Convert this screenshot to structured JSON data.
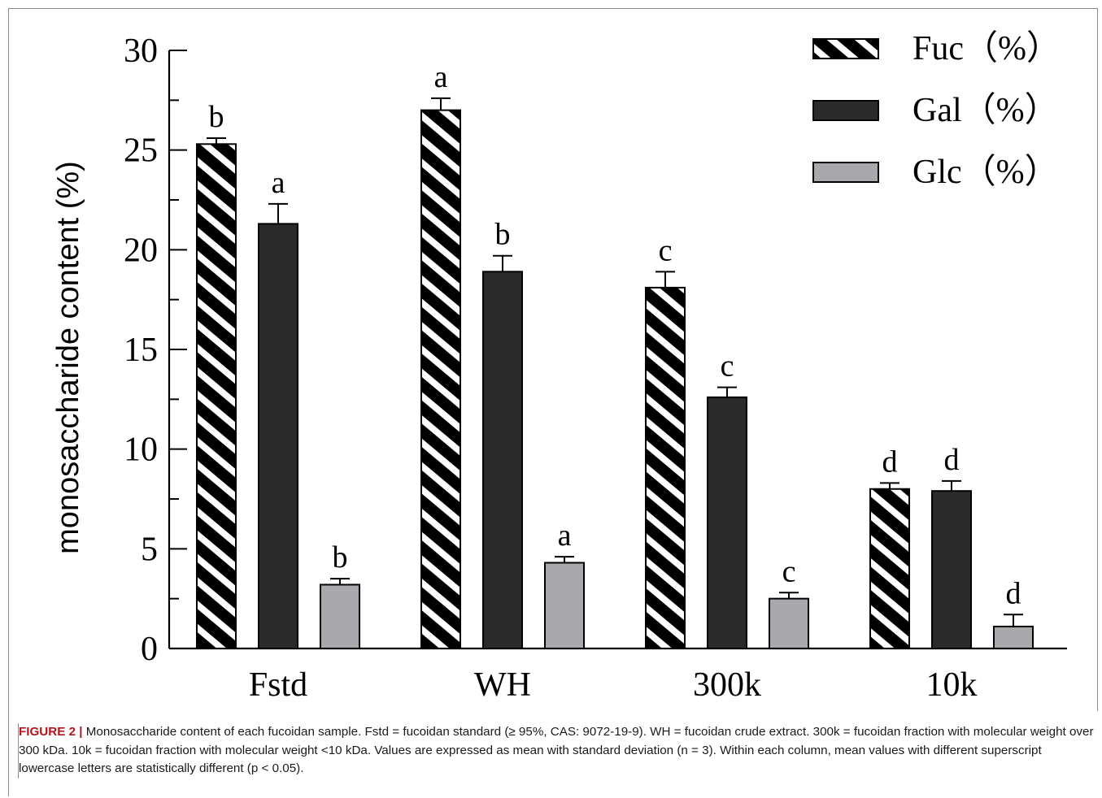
{
  "chart_data": {
    "type": "bar",
    "categories": [
      "Fstd",
      "WH",
      "300k",
      "10k"
    ],
    "ylabel": "monosaccharide content (%)",
    "ylim": [
      0,
      30
    ],
    "yticks": [
      "0",
      "5",
      "10",
      "15",
      "20",
      "25",
      "30"
    ],
    "grid": false,
    "legend_position": "top-right",
    "series": [
      {
        "name": "Fuc（%）",
        "pattern": "hatched",
        "color": "#000000",
        "values": [
          25.3,
          27.0,
          18.1,
          8.0
        ],
        "errors": [
          0.3,
          0.6,
          0.8,
          0.3
        ],
        "letters": [
          "b",
          "a",
          "c",
          "d"
        ]
      },
      {
        "name": "Gal（%）",
        "pattern": "solid",
        "color": "#2b2b2b",
        "values": [
          21.3,
          18.9,
          12.6,
          7.9
        ],
        "errors": [
          1.0,
          0.8,
          0.5,
          0.5
        ],
        "letters": [
          "a",
          "b",
          "c",
          "d"
        ]
      },
      {
        "name": "Glc（%）",
        "pattern": "solid",
        "color": "#a9a9ad",
        "values": [
          3.2,
          4.3,
          2.5,
          1.1
        ],
        "errors": [
          0.3,
          0.3,
          0.3,
          0.6
        ],
        "letters": [
          "b",
          "a",
          "c",
          "d"
        ]
      }
    ]
  },
  "caption": {
    "label": "FIGURE 2 |",
    "text": " Monosaccharide content of each fucoidan sample. Fstd = fucoidan standard (≥ 95%, CAS: 9072-19-9). WH = fucoidan crude extract. 300k = fucoidan fraction with molecular weight over 300 kDa. 10k = fucoidan fraction with molecular weight <10 kDa. Values are expressed as mean with standard deviation (n = 3). Within each column, mean values with different superscript lowercase letters are statistically different (p < 0.05)."
  }
}
